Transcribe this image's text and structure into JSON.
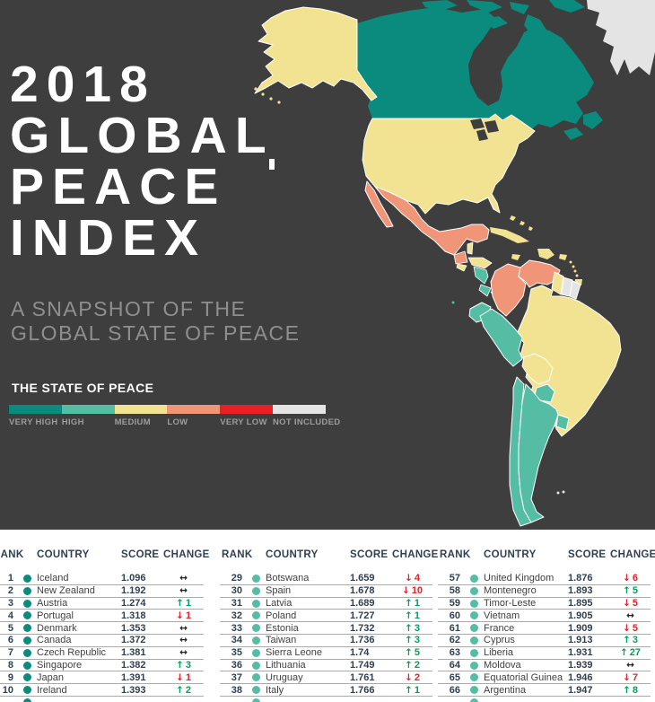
{
  "theme": {
    "background": "#3e3e3e",
    "title_color": "#ffffff",
    "subtitle_color": "#8f8f8f",
    "label_color": "#9c9c9c",
    "header_text": "#31404f",
    "row_text": "#414141",
    "separator": "#aaaaaa"
  },
  "header": {
    "title_lines": [
      "2018",
      "GLOBAL",
      "PEACE",
      "INDEX"
    ],
    "subtitle_lines": [
      "A SNAPSHOT OF THE",
      "GLOBAL STATE OF PEACE"
    ]
  },
  "legend": {
    "title": "THE STATE OF PEACE",
    "items": [
      {
        "id": "very_high",
        "label": "VERY HIGH",
        "color": "#0b8a7e"
      },
      {
        "id": "high",
        "label": "HIGH",
        "color": "#56bda5"
      },
      {
        "id": "medium",
        "label": "MEDIUM",
        "color": "#f2e392"
      },
      {
        "id": "low",
        "label": "LOW",
        "color": "#f09577"
      },
      {
        "id": "very_low",
        "label": "VERY LOW",
        "color": "#e81f27"
      },
      {
        "id": "not_included",
        "label": "NOT INCLUDED",
        "color": "#e4e4e4"
      }
    ]
  },
  "map": {
    "description": "Choropleth map of the Americas shaded by state of peace",
    "regions": {
      "greenland": "not_included",
      "canada": "very_high",
      "alaska": "medium",
      "usa": "medium",
      "mexico": "low",
      "guatemala": "low",
      "belize": "medium",
      "honduras": "medium",
      "el_salvador": "medium",
      "nicaragua": "high",
      "costa_rica": "high",
      "panama": "high",
      "cuba": "medium",
      "jamaica": "medium",
      "hispaniola": "medium",
      "puerto_rico": "medium",
      "bahamas": "medium",
      "lesser_antilles": "medium",
      "trinidad": "medium",
      "colombia": "low",
      "venezuela": "low",
      "guyana": "medium",
      "suriname": "not_included",
      "french_guiana": "not_included",
      "ecuador": "high",
      "peru": "high",
      "brazil": "medium",
      "bolivia": "medium",
      "paraguay": "high",
      "chile": "high",
      "argentina": "high",
      "uruguay": "high",
      "galapagos": "high",
      "falkland_islands": "not_included"
    }
  },
  "table": {
    "headers": {
      "rank": "RANK",
      "country": "COUNTRY",
      "score": "SCORE",
      "change": "CHANGE"
    },
    "change_symbols": {
      "up": "↑",
      "down": "↓",
      "same": "↔"
    },
    "change_colors": {
      "up": "#00a15d",
      "down": "#e8202a",
      "same": "#1f1f1f"
    },
    "groups": [
      {
        "rows": [
          {
            "rank": "1",
            "country": "Iceland",
            "score": "1.096",
            "tier": "very_high",
            "change": {
              "dir": "same",
              "value": ""
            }
          },
          {
            "rank": "2",
            "country": "New Zealand",
            "score": "1.192",
            "tier": "very_high",
            "change": {
              "dir": "same",
              "value": ""
            }
          },
          {
            "rank": "3",
            "country": "Austria",
            "score": "1.274",
            "tier": "very_high",
            "change": {
              "dir": "up",
              "value": "1"
            }
          },
          {
            "rank": "4",
            "country": "Portugal",
            "score": "1.318",
            "tier": "very_high",
            "change": {
              "dir": "down",
              "value": "1"
            }
          },
          {
            "rank": "5",
            "country": "Denmark",
            "score": "1.353",
            "tier": "very_high",
            "change": {
              "dir": "same",
              "value": ""
            }
          },
          {
            "rank": "6",
            "country": "Canada",
            "score": "1.372",
            "tier": "very_high",
            "change": {
              "dir": "same",
              "value": ""
            }
          },
          {
            "rank": "7",
            "country": "Czech Republic",
            "score": "1.381",
            "tier": "very_high",
            "change": {
              "dir": "same",
              "value": ""
            }
          },
          {
            "rank": "8",
            "country": "Singapore",
            "score": "1.382",
            "tier": "very_high",
            "change": {
              "dir": "up",
              "value": "3"
            }
          },
          {
            "rank": "9",
            "country": "Japan",
            "score": "1.391",
            "tier": "very_high",
            "change": {
              "dir": "down",
              "value": "1"
            }
          },
          {
            "rank": "10",
            "country": "Ireland",
            "score": "1.393",
            "tier": "very_high",
            "change": {
              "dir": "up",
              "value": "2"
            }
          }
        ]
      },
      {
        "rows": [
          {
            "rank": "29",
            "country": "Botswana",
            "score": "1.659",
            "tier": "high",
            "change": {
              "dir": "down",
              "value": "4"
            }
          },
          {
            "rank": "30",
            "country": "Spain",
            "score": "1.678",
            "tier": "high",
            "change": {
              "dir": "down",
              "value": "10"
            }
          },
          {
            "rank": "31",
            "country": "Latvia",
            "score": "1.689",
            "tier": "high",
            "change": {
              "dir": "up",
              "value": "1"
            }
          },
          {
            "rank": "32",
            "country": "Poland",
            "score": "1.727",
            "tier": "high",
            "change": {
              "dir": "up",
              "value": "1"
            }
          },
          {
            "rank": "33",
            "country": "Estonia",
            "score": "1.732",
            "tier": "high",
            "change": {
              "dir": "up",
              "value": "3"
            }
          },
          {
            "rank": "34",
            "country": "Taiwan",
            "score": "1.736",
            "tier": "high",
            "change": {
              "dir": "up",
              "value": "3"
            }
          },
          {
            "rank": "35",
            "country": "Sierra Leone",
            "score": "1.74",
            "tier": "high",
            "change": {
              "dir": "up",
              "value": "5"
            }
          },
          {
            "rank": "36",
            "country": "Lithuania",
            "score": "1.749",
            "tier": "high",
            "change": {
              "dir": "up",
              "value": "2"
            }
          },
          {
            "rank": "37",
            "country": "Uruguay",
            "score": "1.761",
            "tier": "high",
            "change": {
              "dir": "down",
              "value": "2"
            }
          },
          {
            "rank": "38",
            "country": "Italy",
            "score": "1.766",
            "tier": "high",
            "change": {
              "dir": "up",
              "value": "1"
            }
          }
        ]
      },
      {
        "rows": [
          {
            "rank": "57",
            "country": "United Kingdom",
            "score": "1.876",
            "tier": "high",
            "change": {
              "dir": "down",
              "value": "6"
            }
          },
          {
            "rank": "58",
            "country": "Montenegro",
            "score": "1.893",
            "tier": "high",
            "change": {
              "dir": "up",
              "value": "5"
            }
          },
          {
            "rank": "59",
            "country": "Timor-Leste",
            "score": "1.895",
            "tier": "high",
            "change": {
              "dir": "down",
              "value": "5"
            }
          },
          {
            "rank": "60",
            "country": "Vietnam",
            "score": "1.905",
            "tier": "high",
            "change": {
              "dir": "same",
              "value": ""
            }
          },
          {
            "rank": "61",
            "country": "France",
            "score": "1.909",
            "tier": "high",
            "change": {
              "dir": "down",
              "value": "5"
            }
          },
          {
            "rank": "62",
            "country": "Cyprus",
            "score": "1.913",
            "tier": "high",
            "change": {
              "dir": "up",
              "value": "3"
            }
          },
          {
            "rank": "63",
            "country": "Liberia",
            "score": "1.931",
            "tier": "high",
            "change": {
              "dir": "up",
              "value": "27"
            }
          },
          {
            "rank": "64",
            "country": "Moldova",
            "score": "1.939",
            "tier": "high",
            "change": {
              "dir": "same",
              "value": ""
            }
          },
          {
            "rank": "65",
            "country": "Equatorial Guinea",
            "score": "1.946",
            "tier": "high",
            "change": {
              "dir": "down",
              "value": "7"
            }
          },
          {
            "rank": "66",
            "country": "Argentina",
            "score": "1.947",
            "tier": "high",
            "change": {
              "dir": "up",
              "value": "8"
            }
          }
        ]
      }
    ]
  }
}
